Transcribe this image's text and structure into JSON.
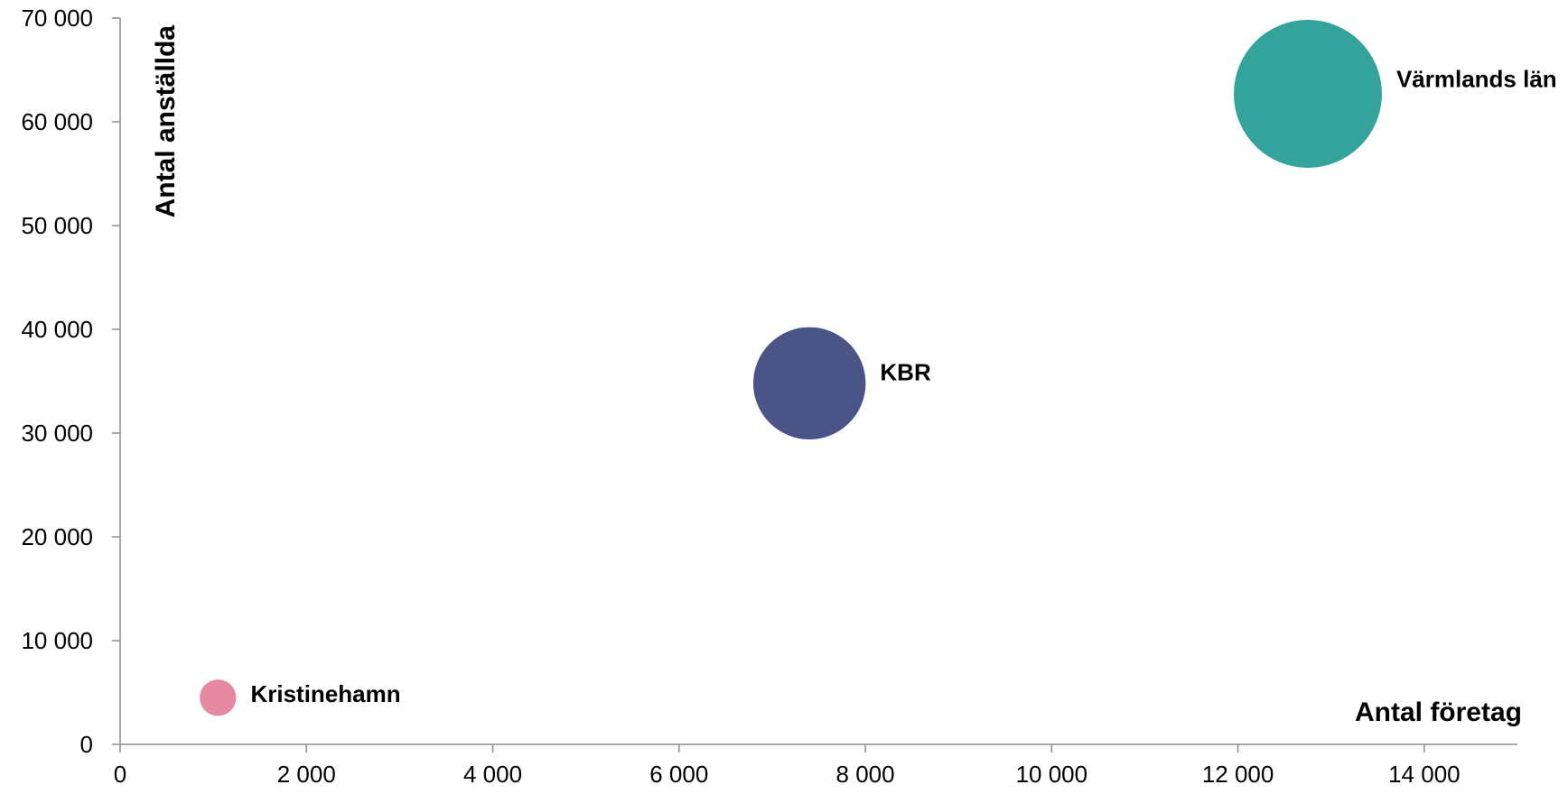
{
  "chart_data": {
    "type": "bubble",
    "title": "",
    "xlabel": "Antal företag",
    "ylabel": "Antal anställda",
    "xlim": [
      0,
      15000
    ],
    "ylim": [
      0,
      70000
    ],
    "x_ticks": [
      0,
      2000,
      4000,
      6000,
      8000,
      10000,
      12000,
      14000
    ],
    "x_tick_labels": [
      "0",
      "2 000",
      "4 000",
      "6 000",
      "8 000",
      "10 000",
      "12 000",
      "14 000"
    ],
    "y_ticks": [
      0,
      10000,
      20000,
      30000,
      40000,
      50000,
      60000,
      70000
    ],
    "y_tick_labels": [
      "0",
      "10 000",
      "20 000",
      "30 000",
      "40 000",
      "50 000",
      "60 000",
      "70 000"
    ],
    "grid": false,
    "legend": "none",
    "points": [
      {
        "label": "Kristinehamn",
        "x": 1050,
        "y": 4500,
        "size": 1,
        "color": "#e68aa3"
      },
      {
        "label": "KBR",
        "x": 7400,
        "y": 34800,
        "size": 9.5,
        "color": "#4a5486"
      },
      {
        "label": "Värmlands län",
        "x": 12750,
        "y": 62700,
        "size": 16.5,
        "color": "#33a39b"
      }
    ]
  }
}
